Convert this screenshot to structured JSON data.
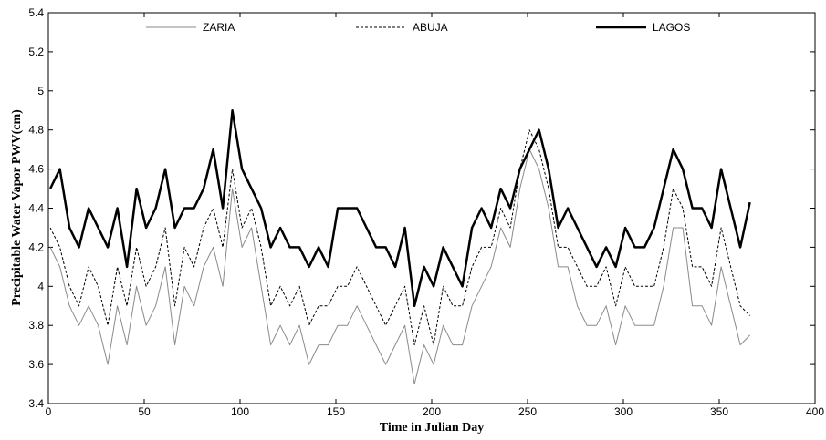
{
  "chart_data": {
    "type": "line",
    "x_label": "Time in Julian Day",
    "y_label": "Precipitable Water Vapor PWV(cm)",
    "xlim": [
      0,
      400
    ],
    "xticks": [
      0,
      50,
      100,
      150,
      200,
      250,
      300,
      350,
      400
    ],
    "ylim": [
      3.4,
      5.4
    ],
    "yticks": [
      3.4,
      3.6,
      3.8,
      4,
      4.2,
      4.4,
      4.6,
      4.8,
      5,
      5.2,
      5.4
    ],
    "grid": false,
    "legend": "top",
    "x": [
      1,
      6,
      11,
      16,
      21,
      26,
      31,
      36,
      41,
      46,
      51,
      56,
      61,
      66,
      71,
      76,
      81,
      86,
      91,
      96,
      101,
      106,
      111,
      116,
      121,
      126,
      131,
      136,
      141,
      146,
      151,
      156,
      161,
      166,
      171,
      176,
      181,
      186,
      191,
      196,
      201,
      206,
      211,
      216,
      221,
      226,
      231,
      236,
      241,
      246,
      251,
      256,
      261,
      266,
      271,
      276,
      281,
      286,
      291,
      296,
      301,
      306,
      311,
      316,
      321,
      326,
      331,
      336,
      341,
      346,
      351,
      356,
      361,
      366
    ],
    "series": [
      {
        "name": "ZARIA",
        "color": "#8a8a8a",
        "line_width": 1,
        "line_style": "solid",
        "values": [
          4.2,
          4.1,
          3.9,
          3.8,
          3.9,
          3.8,
          3.6,
          3.9,
          3.7,
          4.0,
          3.8,
          3.9,
          4.1,
          3.7,
          4.0,
          3.9,
          4.1,
          4.2,
          4.0,
          4.5,
          4.2,
          4.3,
          4.0,
          3.7,
          3.8,
          3.7,
          3.8,
          3.6,
          3.7,
          3.7,
          3.8,
          3.8,
          3.9,
          3.8,
          3.7,
          3.6,
          3.7,
          3.8,
          3.5,
          3.7,
          3.6,
          3.8,
          3.7,
          3.7,
          3.9,
          4.0,
          4.1,
          4.3,
          4.2,
          4.5,
          4.7,
          4.6,
          4.4,
          4.1,
          4.1,
          3.9,
          3.8,
          3.8,
          3.9,
          3.7,
          3.9,
          3.8,
          3.8,
          3.8,
          4.0,
          4.3,
          4.3,
          3.9,
          3.9,
          3.8,
          4.1,
          3.9,
          3.7,
          3.75
        ]
      },
      {
        "name": "ABUJA",
        "color": "#000000",
        "line_width": 1,
        "line_style": "dashed",
        "values": [
          4.3,
          4.2,
          4.0,
          3.9,
          4.1,
          4.0,
          3.8,
          4.1,
          3.9,
          4.2,
          4.0,
          4.1,
          4.3,
          3.9,
          4.2,
          4.1,
          4.3,
          4.4,
          4.2,
          4.6,
          4.3,
          4.4,
          4.2,
          3.9,
          4.0,
          3.9,
          4.0,
          3.8,
          3.9,
          3.9,
          4.0,
          4.0,
          4.1,
          4.0,
          3.9,
          3.8,
          3.9,
          4.0,
          3.7,
          3.9,
          3.7,
          4.0,
          3.9,
          3.9,
          4.1,
          4.2,
          4.2,
          4.4,
          4.3,
          4.6,
          4.8,
          4.7,
          4.5,
          4.2,
          4.2,
          4.1,
          4.0,
          4.0,
          4.1,
          3.9,
          4.1,
          4.0,
          4.0,
          4.0,
          4.2,
          4.5,
          4.4,
          4.1,
          4.1,
          4.0,
          4.3,
          4.1,
          3.9,
          3.85
        ]
      },
      {
        "name": "LAGOS",
        "color": "#000000",
        "line_width": 2.5,
        "line_style": "solid",
        "values": [
          4.5,
          4.6,
          4.3,
          4.2,
          4.4,
          4.3,
          4.2,
          4.4,
          4.1,
          4.5,
          4.3,
          4.4,
          4.6,
          4.3,
          4.4,
          4.4,
          4.5,
          4.7,
          4.4,
          4.9,
          4.6,
          4.5,
          4.4,
          4.2,
          4.3,
          4.2,
          4.2,
          4.1,
          4.2,
          4.1,
          4.4,
          4.4,
          4.4,
          4.3,
          4.2,
          4.2,
          4.1,
          4.3,
          3.9,
          4.1,
          4.0,
          4.2,
          4.1,
          4.0,
          4.3,
          4.4,
          4.3,
          4.5,
          4.4,
          4.6,
          4.7,
          4.8,
          4.6,
          4.3,
          4.4,
          4.3,
          4.2,
          4.1,
          4.2,
          4.1,
          4.3,
          4.2,
          4.2,
          4.3,
          4.5,
          4.7,
          4.6,
          4.4,
          4.4,
          4.3,
          4.6,
          4.4,
          4.2,
          4.43
        ]
      }
    ]
  }
}
